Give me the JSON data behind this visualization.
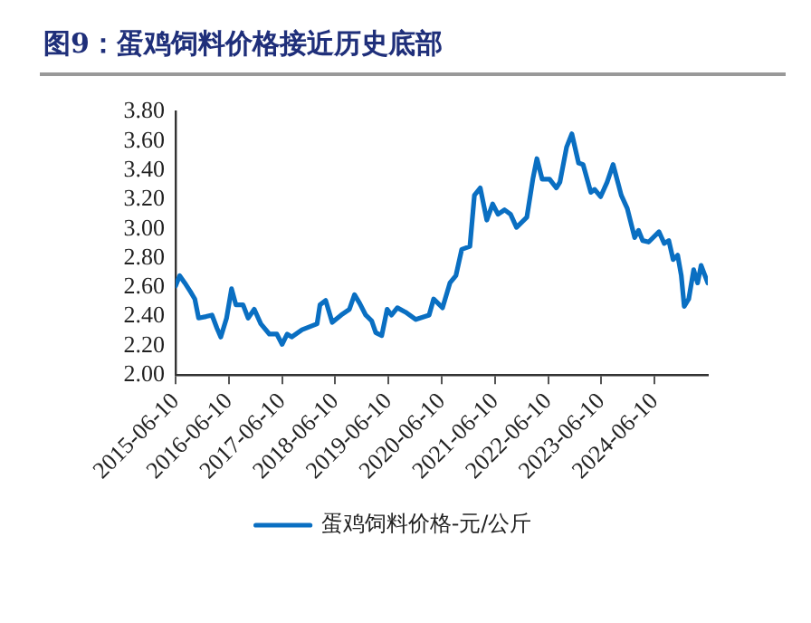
{
  "chart_data": {
    "type": "line",
    "title": "图9：蛋鸡饲料价格接近历史底部",
    "x": [
      "2015-06-10",
      "2015-07-08",
      "2015-08-12",
      "2015-09-20",
      "2015-10-20",
      "2015-11-15",
      "2016-01-05",
      "2016-02-15",
      "2016-03-20",
      "2016-04-15",
      "2016-05-25",
      "2016-06-28",
      "2016-07-28",
      "2016-09-15",
      "2016-10-20",
      "2016-12-01",
      "2017-01-15",
      "2017-03-15",
      "2017-05-05",
      "2017-06-10",
      "2017-07-15",
      "2017-08-15",
      "2017-10-25",
      "2018-02-05",
      "2018-02-25",
      "2018-04-05",
      "2018-05-20",
      "2018-07-20",
      "2018-09-15",
      "2018-10-20",
      "2018-11-25",
      "2019-01-05",
      "2019-02-15",
      "2019-03-15",
      "2019-04-25",
      "2019-06-01",
      "2019-07-01",
      "2019-08-10",
      "2019-10-05",
      "2019-12-15",
      "2020-03-15",
      "2020-04-15",
      "2020-06-15",
      "2020-08-05",
      "2020-09-15",
      "2020-10-25",
      "2020-12-20",
      "2021-01-20",
      "2021-03-01",
      "2021-04-15",
      "2021-05-25",
      "2021-07-01",
      "2021-08-15",
      "2021-09-25",
      "2021-11-05",
      "2022-01-15",
      "2022-02-25",
      "2022-03-25",
      "2022-04-30",
      "2022-06-20",
      "2022-08-05",
      "2022-08-30",
      "2022-10-15",
      "2022-11-20",
      "2023-01-05",
      "2023-02-05",
      "2023-03-30",
      "2023-04-25",
      "2023-06-05",
      "2023-07-20",
      "2023-08-30",
      "2023-10-25",
      "2023-12-05",
      "2024-01-25",
      "2024-02-20",
      "2024-03-20",
      "2024-04-30",
      "2024-07-10",
      "2024-08-15",
      "2024-09-15",
      "2024-10-15",
      "2024-11-15",
      "2024-12-10",
      "2024-12-30",
      "2025-01-30",
      "2025-03-05",
      "2025-04-01",
      "2025-04-25",
      "2025-06-10"
    ],
    "series": [
      {
        "name": "蛋鸡饲料价格-元/公斤",
        "color": "#0a6fc2",
        "values": [
          2.61,
          2.68,
          2.63,
          2.57,
          2.52,
          2.39,
          2.4,
          2.41,
          2.32,
          2.26,
          2.39,
          2.59,
          2.48,
          2.48,
          2.39,
          2.45,
          2.35,
          2.28,
          2.28,
          2.21,
          2.28,
          2.26,
          2.31,
          2.35,
          2.48,
          2.51,
          2.36,
          2.41,
          2.45,
          2.55,
          2.49,
          2.41,
          2.37,
          2.29,
          2.27,
          2.45,
          2.41,
          2.46,
          2.43,
          2.38,
          2.41,
          2.52,
          2.46,
          2.63,
          2.68,
          2.86,
          2.88,
          3.23,
          3.28,
          3.06,
          3.17,
          3.1,
          3.13,
          3.1,
          3.01,
          3.08,
          3.34,
          3.48,
          3.34,
          3.34,
          3.28,
          3.32,
          3.56,
          3.65,
          3.45,
          3.44,
          3.25,
          3.27,
          3.22,
          3.32,
          3.44,
          3.23,
          3.14,
          2.94,
          2.99,
          2.92,
          2.91,
          2.98,
          2.9,
          2.92,
          2.79,
          2.82,
          2.68,
          2.47,
          2.52,
          2.72,
          2.63,
          2.75,
          2.63
        ]
      }
    ],
    "xlim": [
      "2015-06-10",
      "2025-06-10"
    ],
    "xticks": [
      "2015-06-10",
      "2016-06-10",
      "2017-06-10",
      "2018-06-10",
      "2019-06-10",
      "2020-06-10",
      "2021-06-10",
      "2022-06-10",
      "2023-06-10",
      "2024-06-10"
    ],
    "ylim": [
      2.0,
      3.8
    ],
    "yticks": [
      {
        "value": 2.0,
        "label": "2.00"
      },
      {
        "value": 2.2,
        "label": "2.20"
      },
      {
        "value": 2.4,
        "label": "2.40"
      },
      {
        "value": 2.6,
        "label": "2.60"
      },
      {
        "value": 2.8,
        "label": "2.80"
      },
      {
        "value": 3.0,
        "label": "3.00"
      },
      {
        "value": 3.2,
        "label": "3.20"
      },
      {
        "value": 3.4,
        "label": "3.40"
      },
      {
        "value": 3.6,
        "label": "3.60"
      },
      {
        "value": 3.8,
        "label": "3.80"
      }
    ],
    "grid": false,
    "legend": "bottom",
    "marker": "none",
    "line_style": "solid"
  }
}
